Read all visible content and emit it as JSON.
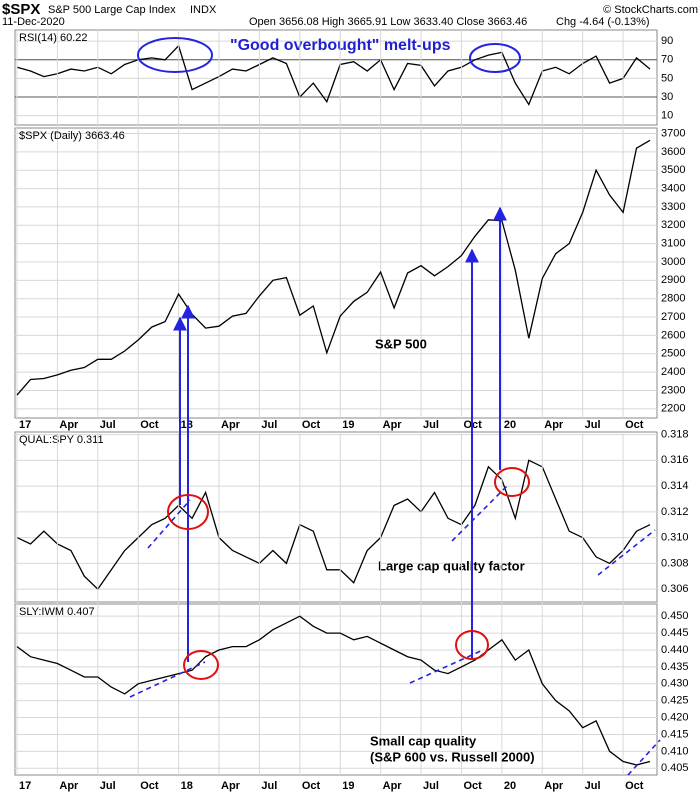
{
  "header": {
    "symbol": "$SPX",
    "name": "S&P 500 Large Cap Index",
    "exchange": "INDX",
    "date": "11-Dec-2020",
    "ohlc": "Open 3656.08 High 3665.91 Low 3633.40 Close 3663.46",
    "change": "Chg -4.64 (-0.13%)",
    "credit": "© StockCharts.com"
  },
  "chart_data": [
    {
      "type": "line",
      "label": "RSI(14) 60.22",
      "annotation": [
        "\"Good overbought\" melt-ups"
      ],
      "color": "#000000",
      "grid": true,
      "x": [
        "2017-01",
        "2017-02",
        "2017-03",
        "2017-04",
        "2017-05",
        "2017-06",
        "2017-07",
        "2017-08",
        "2017-09",
        "2017-10",
        "2017-11",
        "2017-12",
        "2018-01",
        "2018-02",
        "2018-03",
        "2018-04",
        "2018-05",
        "2018-06",
        "2018-07",
        "2018-08",
        "2018-09",
        "2018-10",
        "2018-11",
        "2018-12",
        "2019-01",
        "2019-02",
        "2019-03",
        "2019-04",
        "2019-05",
        "2019-06",
        "2019-07",
        "2019-08",
        "2019-09",
        "2019-10",
        "2019-11",
        "2019-12",
        "2020-01",
        "2020-02",
        "2020-03",
        "2020-04",
        "2020-05",
        "2020-06",
        "2020-07",
        "2020-08",
        "2020-09",
        "2020-10",
        "2020-11",
        "2020-12"
      ],
      "values": [
        62,
        58,
        52,
        55,
        60,
        58,
        62,
        55,
        65,
        70,
        72,
        70,
        85,
        38,
        45,
        52,
        60,
        58,
        65,
        72,
        66,
        30,
        45,
        25,
        65,
        68,
        58,
        70,
        38,
        66,
        64,
        42,
        58,
        62,
        70,
        75,
        78,
        45,
        22,
        58,
        62,
        55,
        66,
        74,
        45,
        50,
        72,
        60
      ],
      "xlim": [
        "2017-01",
        "2020-12"
      ],
      "ylim": [
        0,
        102
      ],
      "yticks": [
        10,
        30,
        50,
        70,
        90
      ],
      "hlines": [
        30,
        70
      ]
    },
    {
      "type": "line",
      "label": "$SPX (Daily) 3663.46",
      "annotation": [
        "S&P 500"
      ],
      "color": "#000000",
      "grid": true,
      "x": [
        "2017-01",
        "2017-02",
        "2017-03",
        "2017-04",
        "2017-05",
        "2017-06",
        "2017-07",
        "2017-08",
        "2017-09",
        "2017-10",
        "2017-11",
        "2017-12",
        "2018-01",
        "2018-02",
        "2018-03",
        "2018-04",
        "2018-05",
        "2018-06",
        "2018-07",
        "2018-08",
        "2018-09",
        "2018-10",
        "2018-11",
        "2018-12",
        "2019-01",
        "2019-02",
        "2019-03",
        "2019-04",
        "2019-05",
        "2019-06",
        "2019-07",
        "2019-08",
        "2019-09",
        "2019-10",
        "2019-11",
        "2019-12",
        "2020-01",
        "2020-02",
        "2020-03",
        "2020-04",
        "2020-05",
        "2020-06",
        "2020-07",
        "2020-08",
        "2020-09",
        "2020-10",
        "2020-11",
        "2020-12"
      ],
      "values": [
        2275,
        2360,
        2365,
        2385,
        2410,
        2425,
        2470,
        2470,
        2515,
        2575,
        2645,
        2675,
        2825,
        2715,
        2640,
        2650,
        2705,
        2720,
        2815,
        2900,
        2915,
        2710,
        2760,
        2505,
        2705,
        2785,
        2835,
        2945,
        2750,
        2940,
        2980,
        2925,
        2975,
        3035,
        3140,
        3230,
        3225,
        2955,
        2585,
        2910,
        3045,
        3100,
        3270,
        3500,
        3365,
        3270,
        3620,
        3663
      ],
      "xlim": [
        "2017-01",
        "2020-12"
      ],
      "ylim": [
        2150,
        3730
      ],
      "yticks": [
        2200,
        2300,
        2400,
        2500,
        2600,
        2700,
        2800,
        2900,
        3000,
        3100,
        3200,
        3300,
        3400,
        3500,
        3600,
        3700
      ],
      "xticks": [
        {
          "value": "2017-01",
          "label": "17"
        },
        {
          "value": "2017-04",
          "label": "Apr"
        },
        {
          "value": "2017-07",
          "label": "Jul"
        },
        {
          "value": "2017-10",
          "label": "Oct"
        },
        {
          "value": "2018-01",
          "label": "18"
        },
        {
          "value": "2018-04",
          "label": "Apr"
        },
        {
          "value": "2018-07",
          "label": "Jul"
        },
        {
          "value": "2018-10",
          "label": "Oct"
        },
        {
          "value": "2019-01",
          "label": "19"
        },
        {
          "value": "2019-04",
          "label": "Apr"
        },
        {
          "value": "2019-07",
          "label": "Jul"
        },
        {
          "value": "2019-10",
          "label": "Oct"
        },
        {
          "value": "2020-01",
          "label": "20"
        },
        {
          "value": "2020-04",
          "label": "Apr"
        },
        {
          "value": "2020-07",
          "label": "Jul"
        },
        {
          "value": "2020-10",
          "label": "Oct"
        }
      ]
    },
    {
      "type": "line",
      "label": "QUAL:SPY 0.311",
      "annotation": [
        "Large cap quality factor"
      ],
      "color": "#000000",
      "grid": true,
      "x": [
        "2017-01",
        "2017-02",
        "2017-03",
        "2017-04",
        "2017-05",
        "2017-06",
        "2017-07",
        "2017-08",
        "2017-09",
        "2017-10",
        "2017-11",
        "2017-12",
        "2018-01",
        "2018-02",
        "2018-03",
        "2018-04",
        "2018-05",
        "2018-06",
        "2018-07",
        "2018-08",
        "2018-09",
        "2018-10",
        "2018-11",
        "2018-12",
        "2019-01",
        "2019-02",
        "2019-03",
        "2019-04",
        "2019-05",
        "2019-06",
        "2019-07",
        "2019-08",
        "2019-09",
        "2019-10",
        "2019-11",
        "2019-12",
        "2020-01",
        "2020-02",
        "2020-03",
        "2020-04",
        "2020-05",
        "2020-06",
        "2020-07",
        "2020-08",
        "2020-09",
        "2020-10",
        "2020-11",
        "2020-12"
      ],
      "values": [
        0.31,
        0.3095,
        0.3105,
        0.3095,
        0.309,
        0.307,
        0.306,
        0.3075,
        0.309,
        0.31,
        0.311,
        0.3115,
        0.3125,
        0.3115,
        0.3135,
        0.31,
        0.309,
        0.3085,
        0.308,
        0.309,
        0.308,
        0.311,
        0.3105,
        0.3075,
        0.3075,
        0.3065,
        0.309,
        0.31,
        0.3125,
        0.313,
        0.312,
        0.3135,
        0.3115,
        0.311,
        0.3125,
        0.3155,
        0.3145,
        0.3115,
        0.316,
        0.3155,
        0.313,
        0.3105,
        0.31,
        0.3085,
        0.308,
        0.309,
        0.3105,
        0.311
      ],
      "xlim": [
        "2017-01",
        "2020-12"
      ],
      "ylim": [
        0.305,
        0.3182
      ],
      "yticks": [
        0.306,
        0.308,
        {
          "value": 0.31,
          "label": "0.310"
        },
        0.312,
        0.314,
        0.316,
        0.318
      ]
    },
    {
      "type": "line",
      "label": "SLY:IWM 0.407",
      "annotation": [
        "Small cap quality",
        "(S&P 600 vs. Russell 2000)"
      ],
      "color": "#000000",
      "grid": true,
      "x": [
        "2017-01",
        "2017-02",
        "2017-03",
        "2017-04",
        "2017-05",
        "2017-06",
        "2017-07",
        "2017-08",
        "2017-09",
        "2017-10",
        "2017-11",
        "2017-12",
        "2018-01",
        "2018-02",
        "2018-03",
        "2018-04",
        "2018-05",
        "2018-06",
        "2018-07",
        "2018-08",
        "2018-09",
        "2018-10",
        "2018-11",
        "2018-12",
        "2019-01",
        "2019-02",
        "2019-03",
        "2019-04",
        "2019-05",
        "2019-06",
        "2019-07",
        "2019-08",
        "2019-09",
        "2019-10",
        "2019-11",
        "2019-12",
        "2020-01",
        "2020-02",
        "2020-03",
        "2020-04",
        "2020-05",
        "2020-06",
        "2020-07",
        "2020-08",
        "2020-09",
        "2020-10",
        "2020-11",
        "2020-12"
      ],
      "values": [
        0.441,
        0.438,
        0.437,
        0.436,
        0.434,
        0.432,
        0.432,
        0.429,
        0.427,
        0.43,
        0.431,
        0.432,
        0.433,
        0.434,
        0.438,
        0.44,
        0.441,
        0.441,
        0.443,
        0.446,
        0.448,
        0.45,
        0.447,
        0.445,
        0.445,
        0.443,
        0.444,
        0.442,
        0.44,
        0.438,
        0.437,
        0.434,
        0.433,
        0.435,
        0.437,
        0.44,
        0.443,
        0.437,
        0.44,
        0.43,
        0.425,
        0.422,
        0.417,
        0.419,
        0.41,
        0.407,
        0.406,
        0.407
      ],
      "xlim": [
        "2017-01",
        "2020-12"
      ],
      "ylim": [
        0.403,
        0.4536
      ],
      "yticks": [
        0.405,
        {
          "value": 0.41,
          "label": "0.410"
        },
        0.415,
        {
          "value": 0.42,
          "label": "0.420"
        },
        0.425,
        {
          "value": 0.43,
          "label": "0.430"
        },
        0.435,
        {
          "value": 0.44,
          "label": "0.440"
        },
        0.445,
        {
          "value": 0.45,
          "label": "0.450"
        }
      ],
      "xticks": [
        {
          "value": "2017-01",
          "label": "17"
        },
        {
          "value": "2017-04",
          "label": "Apr"
        },
        {
          "value": "2017-07",
          "label": "Jul"
        },
        {
          "value": "2017-10",
          "label": "Oct"
        },
        {
          "value": "2018-01",
          "label": "18"
        },
        {
          "value": "2018-04",
          "label": "Apr"
        },
        {
          "value": "2018-07",
          "label": "Jul"
        },
        {
          "value": "2018-10",
          "label": "Oct"
        },
        {
          "value": "2019-01",
          "label": "19"
        },
        {
          "value": "2019-04",
          "label": "Apr"
        },
        {
          "value": "2019-07",
          "label": "Jul"
        },
        {
          "value": "2019-10",
          "label": "Oct"
        },
        {
          "value": "2020-01",
          "label": "20"
        },
        {
          "value": "2020-04",
          "label": "Apr"
        },
        {
          "value": "2020-07",
          "label": "Jul"
        },
        {
          "value": "2020-10",
          "label": "Oct"
        }
      ]
    }
  ]
}
